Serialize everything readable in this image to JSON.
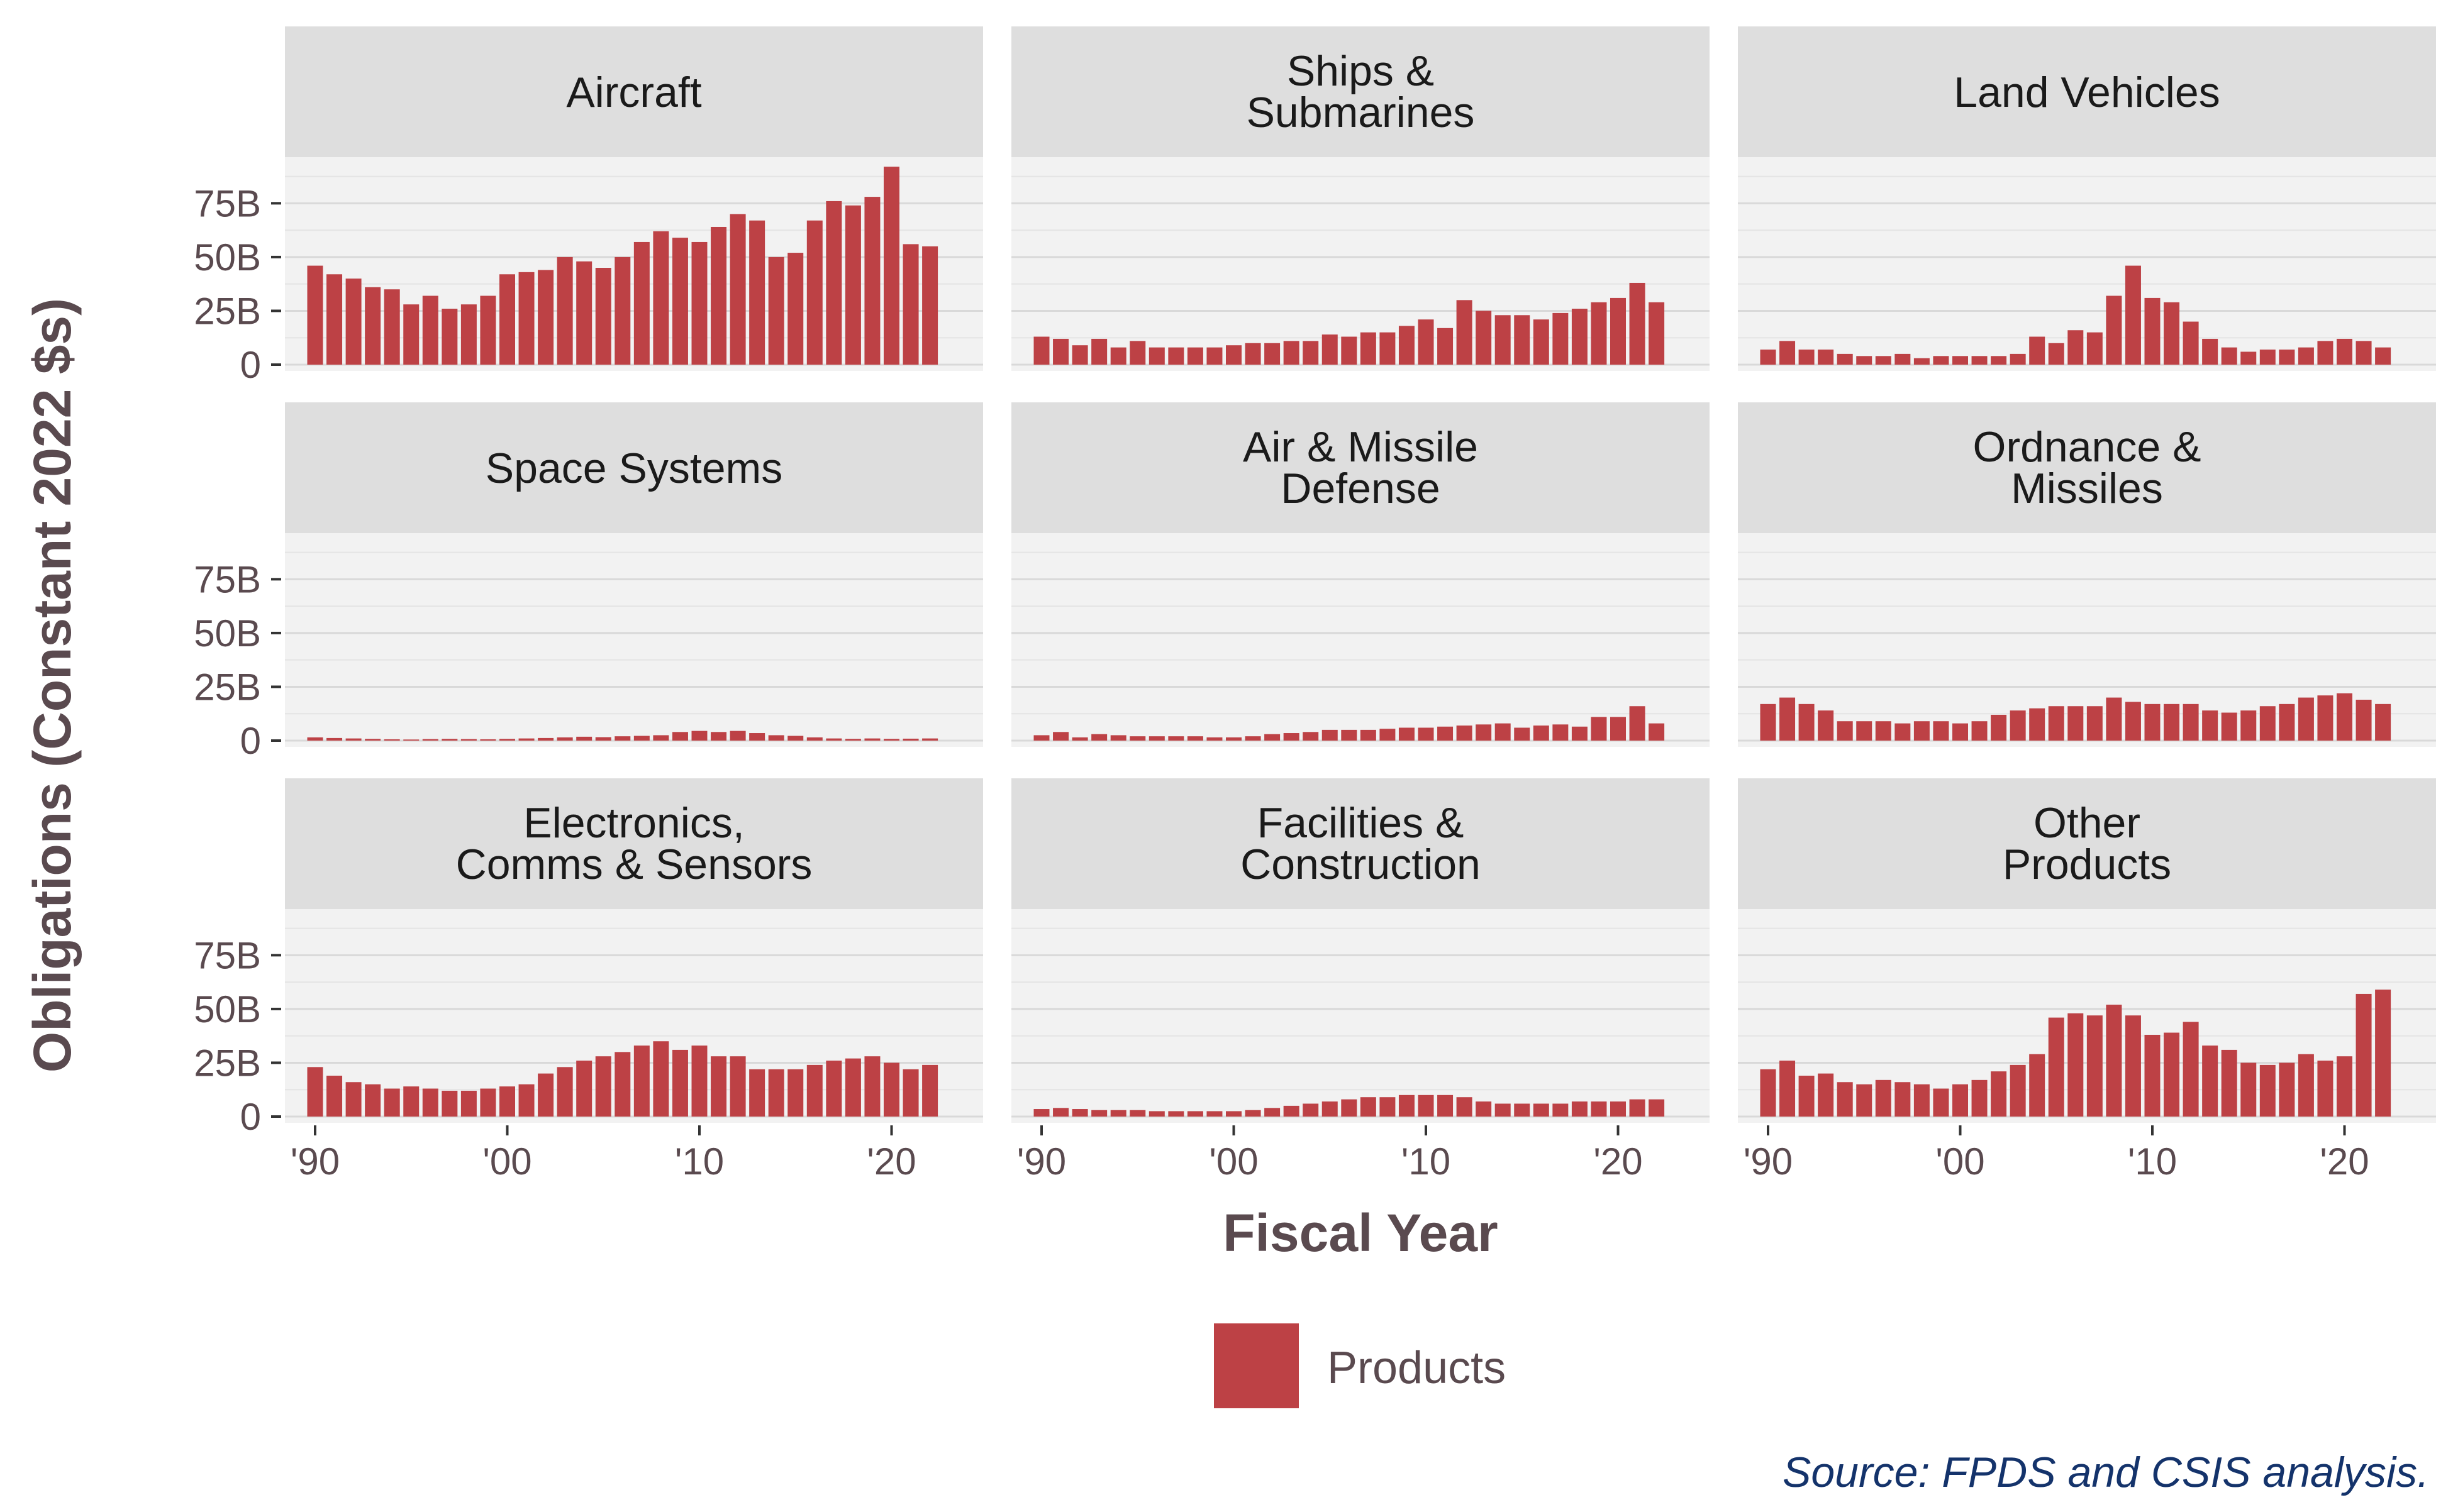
{
  "chart_data": {
    "type": "bar",
    "layout": "faceted 3x3 grid, shared axes",
    "x": [
      1990,
      1991,
      1992,
      1993,
      1994,
      1995,
      1996,
      1997,
      1998,
      1999,
      2000,
      2001,
      2002,
      2003,
      2004,
      2005,
      2006,
      2007,
      2008,
      2009,
      2010,
      2011,
      2012,
      2013,
      2014,
      2015,
      2016,
      2017,
      2018,
      2019,
      2020,
      2021,
      2022
    ],
    "xticks": [
      1990,
      2000,
      2010,
      2020
    ],
    "xtick_labels": [
      "'90",
      "'00",
      "'10",
      "'20"
    ],
    "yticks": [
      0,
      25,
      50,
      75
    ],
    "ytick_labels": [
      "0",
      "25B",
      "50B",
      "75B"
    ],
    "ylim": [
      0,
      95
    ],
    "value_unit": "billions of constant 2022 dollars",
    "xlabel": "Fiscal Year",
    "ylabel": "Obligations (Constant 2022 $s)",
    "legend": {
      "label": "Products",
      "color": "#bd4145",
      "position": "bottom"
    },
    "grid": true,
    "panel_background": "#f2f2f2",
    "strip_background": "#dedede",
    "bar_color": "#bd4145",
    "facets": [
      {
        "title": [
          "Aircraft"
        ],
        "values": [
          46,
          42,
          40,
          36,
          35,
          28,
          32,
          26,
          28,
          32,
          42,
          43,
          44,
          50,
          48,
          45,
          50,
          57,
          62,
          59,
          57,
          64,
          70,
          67,
          50,
          52,
          67,
          76,
          74,
          78,
          92,
          56,
          55
        ]
      },
      {
        "title": [
          "Ships &",
          "Submarines"
        ],
        "values": [
          13,
          12,
          9,
          12,
          8,
          11,
          8,
          8,
          8,
          8,
          9,
          10,
          10,
          11,
          11,
          14,
          13,
          15,
          15,
          18,
          21,
          17,
          30,
          25,
          23,
          23,
          21,
          24,
          26,
          29,
          31,
          38,
          29
        ]
      },
      {
        "title": [
          "Land Vehicles"
        ],
        "values": [
          7,
          11,
          7,
          7,
          5,
          4,
          4,
          5,
          3,
          4,
          4,
          4,
          4,
          5,
          13,
          10,
          16,
          15,
          32,
          46,
          31,
          29,
          20,
          12,
          8,
          6,
          7,
          7,
          8,
          11,
          12,
          11,
          8
        ]
      },
      {
        "title": [
          "Space Systems"
        ],
        "values": [
          1.5,
          1.2,
          1,
          0.8,
          0.6,
          0.5,
          0.7,
          0.8,
          0.7,
          0.6,
          0.8,
          1,
          1.2,
          1.5,
          1.8,
          1.6,
          2,
          2.2,
          2.5,
          4,
          4.5,
          4,
          4.5,
          3.5,
          2.5,
          2.2,
          1.5,
          1,
          0.8,
          1,
          0.8,
          0.9,
          1
        ]
      },
      {
        "title": [
          "Air & Missile",
          "Defense"
        ],
        "values": [
          2.5,
          4,
          1.5,
          3,
          2.5,
          2,
          2,
          2,
          2,
          1.5,
          1.5,
          2,
          3,
          3.5,
          4,
          5,
          5,
          5,
          5.5,
          6,
          6,
          6.5,
          7,
          7.5,
          8,
          6,
          7,
          7.5,
          6.5,
          11,
          11,
          16,
          8
        ]
      },
      {
        "title": [
          "Ordnance &",
          "Missiles"
        ],
        "values": [
          17,
          20,
          17,
          14,
          9,
          9,
          9,
          8,
          9,
          9,
          8,
          9,
          12,
          14,
          15,
          16,
          16,
          16,
          20,
          18,
          17,
          17,
          17,
          14,
          13,
          14,
          16,
          17,
          20,
          21,
          22,
          19,
          17
        ]
      },
      {
        "title": [
          "Electronics,",
          "Comms & Sensors"
        ],
        "values": [
          23,
          19,
          16,
          15,
          13,
          14,
          13,
          12,
          12,
          13,
          14,
          15,
          20,
          23,
          26,
          28,
          30,
          33,
          35,
          31,
          33,
          28,
          28,
          22,
          22,
          22,
          24,
          26,
          27,
          28,
          25,
          22,
          24
        ]
      },
      {
        "title": [
          "Facilities &",
          "Construction"
        ],
        "values": [
          3.5,
          4,
          3.5,
          3,
          3,
          3,
          2.5,
          2.5,
          2.5,
          2.5,
          2.5,
          3,
          4,
          5,
          6,
          7,
          8,
          9,
          9,
          10,
          10,
          10,
          9,
          7,
          6,
          6,
          6,
          6,
          7,
          7,
          7,
          8,
          8
        ]
      },
      {
        "title": [
          "Other",
          "Products"
        ],
        "values": [
          22,
          26,
          19,
          20,
          16,
          15,
          17,
          16,
          15,
          13,
          15,
          17,
          21,
          24,
          29,
          46,
          48,
          47,
          52,
          47,
          38,
          39,
          44,
          33,
          31,
          25,
          24,
          25,
          29,
          26,
          28,
          57,
          59
        ]
      }
    ],
    "annotations": [
      "Source: FPDS and CSIS analysis."
    ]
  }
}
